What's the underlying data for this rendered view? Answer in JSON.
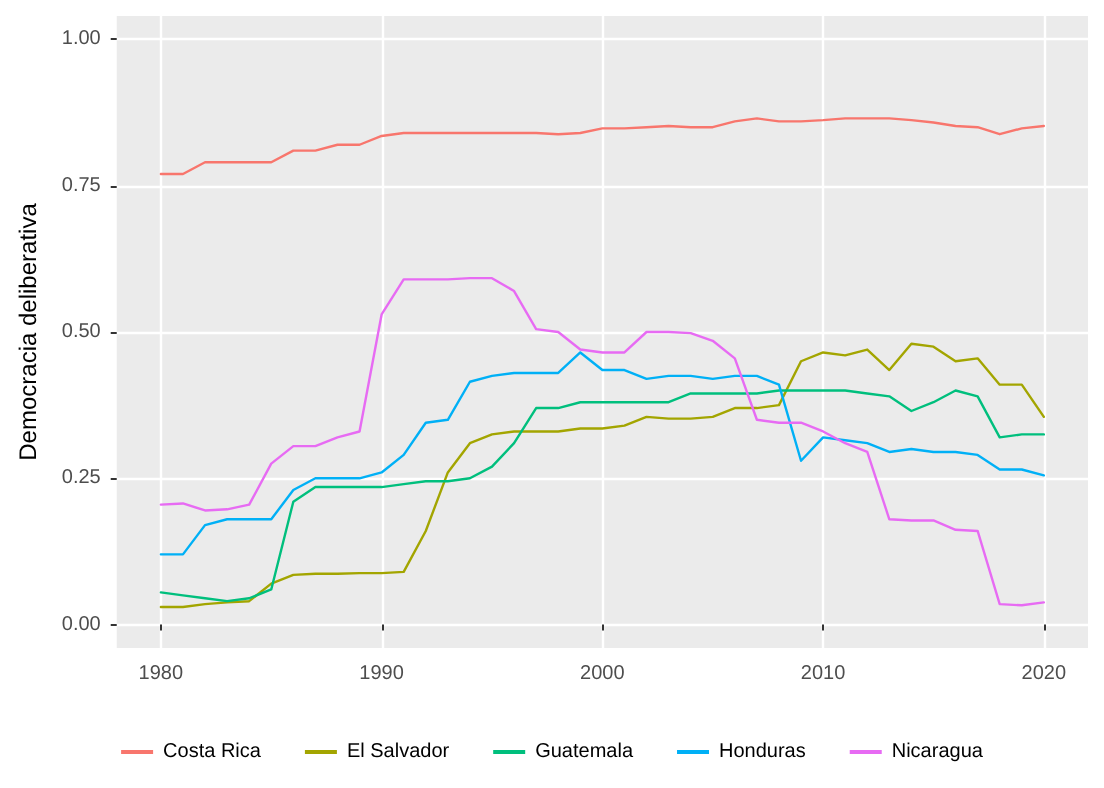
{
  "chart_data": {
    "type": "line",
    "ylabel": "Democracia deliberativa",
    "x": [
      1980,
      1981,
      1982,
      1983,
      1984,
      1985,
      1986,
      1987,
      1988,
      1989,
      1990,
      1991,
      1992,
      1993,
      1994,
      1995,
      1996,
      1997,
      1998,
      1999,
      2000,
      2001,
      2002,
      2003,
      2004,
      2005,
      2006,
      2007,
      2008,
      2009,
      2010,
      2011,
      2012,
      2013,
      2014,
      2015,
      2016,
      2017,
      2018,
      2019,
      2020
    ],
    "series": [
      {
        "name": "Costa Rica",
        "color": "#f8766d",
        "values": [
          0.77,
          0.77,
          0.79,
          0.79,
          0.79,
          0.79,
          0.81,
          0.81,
          0.82,
          0.82,
          0.835,
          0.84,
          0.84,
          0.84,
          0.84,
          0.84,
          0.84,
          0.84,
          0.838,
          0.84,
          0.848,
          0.848,
          0.85,
          0.852,
          0.85,
          0.85,
          0.86,
          0.865,
          0.86,
          0.86,
          0.862,
          0.865,
          0.865,
          0.865,
          0.862,
          0.858,
          0.852,
          0.85,
          0.838,
          0.848,
          0.852
        ]
      },
      {
        "name": "El Salvador",
        "color": "#a3a500",
        "values": [
          0.03,
          0.03,
          0.035,
          0.038,
          0.04,
          0.07,
          0.085,
          0.087,
          0.087,
          0.088,
          0.088,
          0.09,
          0.16,
          0.26,
          0.31,
          0.325,
          0.33,
          0.33,
          0.33,
          0.335,
          0.335,
          0.34,
          0.355,
          0.352,
          0.352,
          0.355,
          0.37,
          0.37,
          0.375,
          0.45,
          0.465,
          0.46,
          0.47,
          0.435,
          0.48,
          0.475,
          0.45,
          0.455,
          0.41,
          0.41,
          0.355
        ]
      },
      {
        "name": "Guatemala",
        "color": "#00bf7d",
        "values": [
          0.055,
          0.05,
          0.045,
          0.04,
          0.045,
          0.06,
          0.21,
          0.235,
          0.235,
          0.235,
          0.235,
          0.24,
          0.245,
          0.245,
          0.25,
          0.27,
          0.31,
          0.37,
          0.37,
          0.38,
          0.38,
          0.38,
          0.38,
          0.38,
          0.395,
          0.395,
          0.395,
          0.395,
          0.4,
          0.4,
          0.4,
          0.4,
          0.395,
          0.39,
          0.365,
          0.38,
          0.4,
          0.39,
          0.32,
          0.325,
          0.325
        ]
      },
      {
        "name": "Honduras",
        "color": "#00b0f6",
        "values": [
          0.12,
          0.12,
          0.17,
          0.18,
          0.18,
          0.18,
          0.23,
          0.25,
          0.25,
          0.25,
          0.26,
          0.29,
          0.345,
          0.35,
          0.415,
          0.425,
          0.43,
          0.43,
          0.43,
          0.465,
          0.435,
          0.435,
          0.42,
          0.425,
          0.425,
          0.42,
          0.425,
          0.425,
          0.41,
          0.28,
          0.32,
          0.315,
          0.31,
          0.295,
          0.3,
          0.295,
          0.295,
          0.29,
          0.265,
          0.265,
          0.255
        ]
      },
      {
        "name": "Nicaragua",
        "color": "#e76bf3",
        "values": [
          0.205,
          0.207,
          0.195,
          0.197,
          0.205,
          0.275,
          0.305,
          0.305,
          0.32,
          0.33,
          0.53,
          0.59,
          0.59,
          0.59,
          0.592,
          0.592,
          0.57,
          0.505,
          0.5,
          0.47,
          0.465,
          0.465,
          0.5,
          0.5,
          0.498,
          0.485,
          0.455,
          0.35,
          0.345,
          0.345,
          0.33,
          0.31,
          0.295,
          0.18,
          0.178,
          0.178,
          0.162,
          0.16,
          0.035,
          0.033,
          0.038
        ]
      }
    ],
    "xlim": [
      1978,
      2022
    ],
    "xticks": [
      1980,
      1990,
      2000,
      2010,
      2020
    ],
    "ylim": [
      -0.04,
      1.04
    ],
    "yticks": [
      {
        "value": 0,
        "label": "0.00"
      },
      {
        "value": 0.25,
        "label": "0.25"
      },
      {
        "value": 0.5,
        "label": "0.50"
      },
      {
        "value": 0.75,
        "label": "0.75"
      },
      {
        "value": 1,
        "label": "1.00"
      }
    ],
    "grid": true,
    "legend": "bottom",
    "marker": "none",
    "line_style": "solid"
  }
}
